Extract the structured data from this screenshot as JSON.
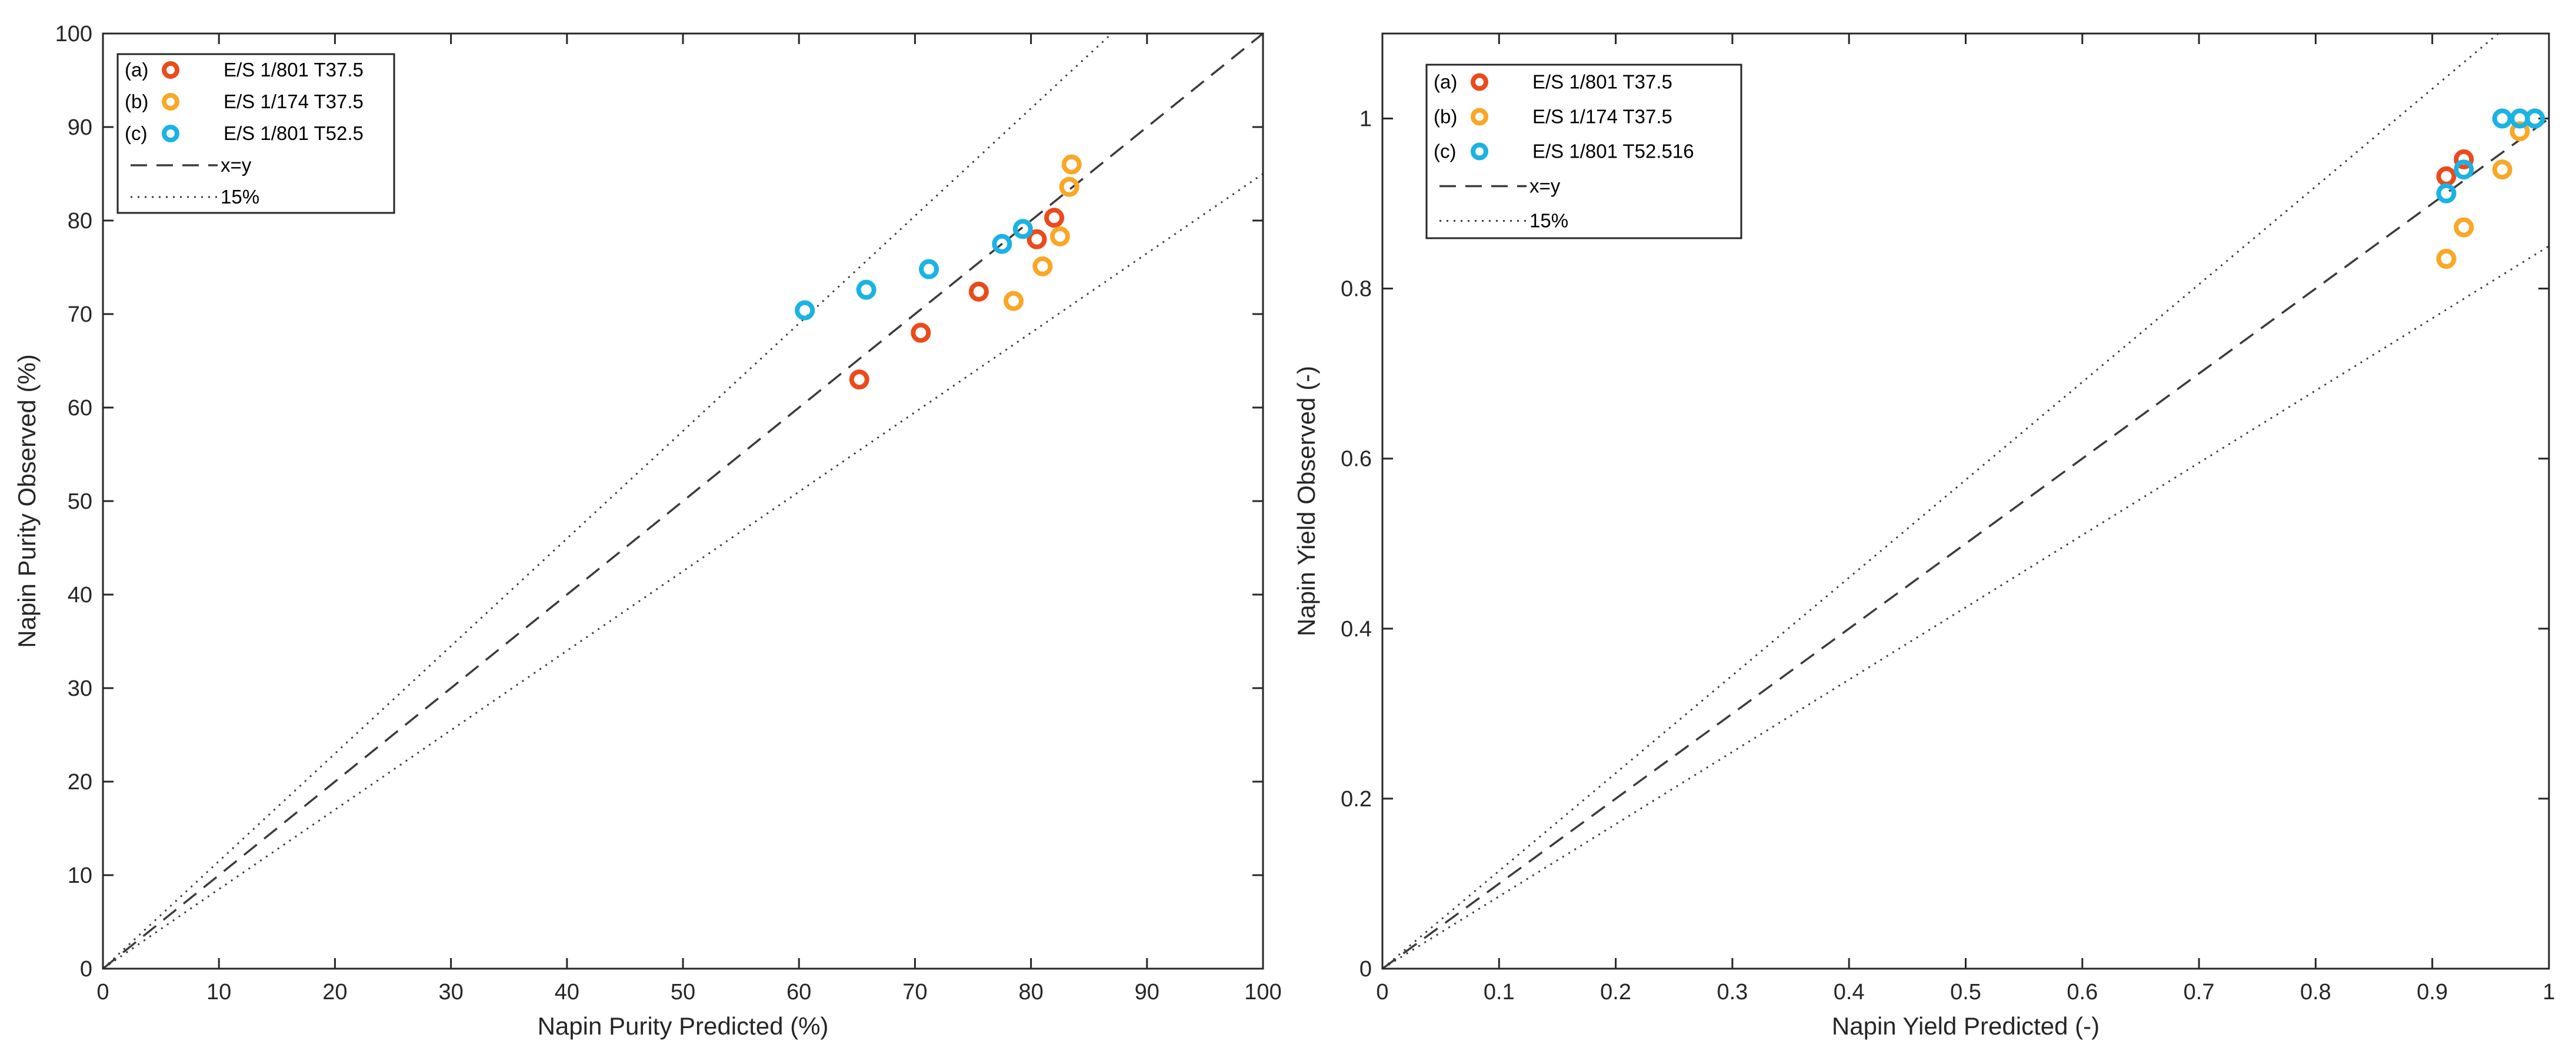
{
  "colors": {
    "a": "#ea4b1c",
    "b": "#f8a826",
    "c": "#1ab3e4",
    "reference": "#3b3b3b"
  },
  "chart_data": [
    {
      "type": "scatter",
      "xlabel": "Napin Purity Predicted (%)",
      "ylabel": "Napin Purity Observed (%)",
      "xlim": [
        0,
        100
      ],
      "ylim": [
        0,
        100
      ],
      "xticks": [
        0,
        10,
        20,
        30,
        40,
        50,
        60,
        70,
        80,
        90,
        100
      ],
      "yticks": [
        0,
        10,
        20,
        30,
        40,
        50,
        60,
        70,
        80,
        90,
        100
      ],
      "xtick_labels": [
        "0",
        "10",
        "20",
        "30",
        "40",
        "50",
        "60",
        "70",
        "80",
        "90",
        "100"
      ],
      "ytick_labels": [
        "0",
        "10",
        "20",
        "30",
        "40",
        "50",
        "60",
        "70",
        "80",
        "90",
        "100"
      ],
      "reference_lines": {
        "identity": "x=y",
        "band_fraction": 0.15
      },
      "legend_position": "top-left",
      "legend": [
        {
          "letter": "(a)",
          "label": "E/S 1/801 T37.5",
          "kind": "marker",
          "color_key": "a"
        },
        {
          "letter": "(b)",
          "label": "E/S 1/174 T37.5",
          "kind": "marker",
          "color_key": "b"
        },
        {
          "letter": "(c)",
          "label": "E/S 1/801 T52.5",
          "kind": "marker",
          "color_key": "c"
        },
        {
          "letter": "",
          "label": "x=y",
          "kind": "dashed"
        },
        {
          "letter": "",
          "label": "15%",
          "kind": "dotted"
        }
      ],
      "series": [
        {
          "name": "E/S 1/801 T37.5",
          "color_key": "a",
          "points": [
            [
              65.2,
              63.0
            ],
            [
              70.5,
              68.0
            ],
            [
              75.5,
              72.4
            ],
            [
              80.5,
              78.0
            ],
            [
              82.0,
              80.3
            ]
          ]
        },
        {
          "name": "E/S 1/174 T37.5",
          "color_key": "b",
          "points": [
            [
              78.5,
              71.4
            ],
            [
              81.0,
              75.1
            ],
            [
              82.5,
              78.3
            ],
            [
              83.3,
              83.6
            ],
            [
              83.5,
              86.0
            ]
          ]
        },
        {
          "name": "E/S 1/801 T52.5",
          "color_key": "c",
          "points": [
            [
              60.5,
              70.4
            ],
            [
              65.8,
              72.6
            ],
            [
              71.2,
              74.8
            ],
            [
              77.5,
              77.5
            ],
            [
              79.3,
              79.1
            ]
          ]
        }
      ]
    },
    {
      "type": "scatter",
      "xlabel": "Napin Yield Predicted (-)",
      "ylabel": "Napin Yield Observed (-)",
      "xlim": [
        0,
        1
      ],
      "ylim": [
        0,
        1.1
      ],
      "xticks": [
        0,
        0.1,
        0.2,
        0.3,
        0.4,
        0.5,
        0.6,
        0.7,
        0.8,
        0.9,
        1
      ],
      "yticks": [
        0,
        0.2,
        0.4,
        0.6,
        0.8,
        1
      ],
      "xtick_labels": [
        "0",
        "0.1",
        "0.2",
        "0.3",
        "0.4",
        "0.5",
        "0.6",
        "0.7",
        "0.8",
        "0.9",
        "1"
      ],
      "ytick_labels": [
        "0",
        "0.2",
        "0.4",
        "0.6",
        "0.8",
        "1"
      ],
      "reference_lines": {
        "identity": "x=y",
        "band_fraction": 0.15
      },
      "legend_position": "top-left",
      "legend": [
        {
          "letter": "(a)",
          "label": "E/S 1/801 T37.5",
          "kind": "marker",
          "color_key": "a"
        },
        {
          "letter": "(b)",
          "label": "E/S 1/174 T37.5",
          "kind": "marker",
          "color_key": "b"
        },
        {
          "letter": "(c)",
          "label": "E/S 1/801 T52.516",
          "kind": "marker",
          "color_key": "c"
        },
        {
          "letter": "",
          "label": "x=y",
          "kind": "dashed"
        },
        {
          "letter": "",
          "label": "15%",
          "kind": "dotted"
        }
      ],
      "series": [
        {
          "name": "E/S 1/801 T37.5",
          "color_key": "a",
          "points": [
            [
              0.912,
              0.932
            ],
            [
              0.927,
              0.952
            ]
          ]
        },
        {
          "name": "E/S 1/174 T37.5",
          "color_key": "b",
          "points": [
            [
              0.912,
              0.835
            ],
            [
              0.927,
              0.872
            ],
            [
              0.96,
              0.94
            ],
            [
              0.975,
              0.985
            ]
          ]
        },
        {
          "name": "E/S 1/801 T52.516",
          "color_key": "c",
          "points": [
            [
              0.912,
              0.912
            ],
            [
              0.927,
              0.94
            ],
            [
              0.96,
              1.0
            ],
            [
              0.975,
              1.0
            ],
            [
              0.988,
              1.0
            ]
          ]
        }
      ]
    }
  ]
}
